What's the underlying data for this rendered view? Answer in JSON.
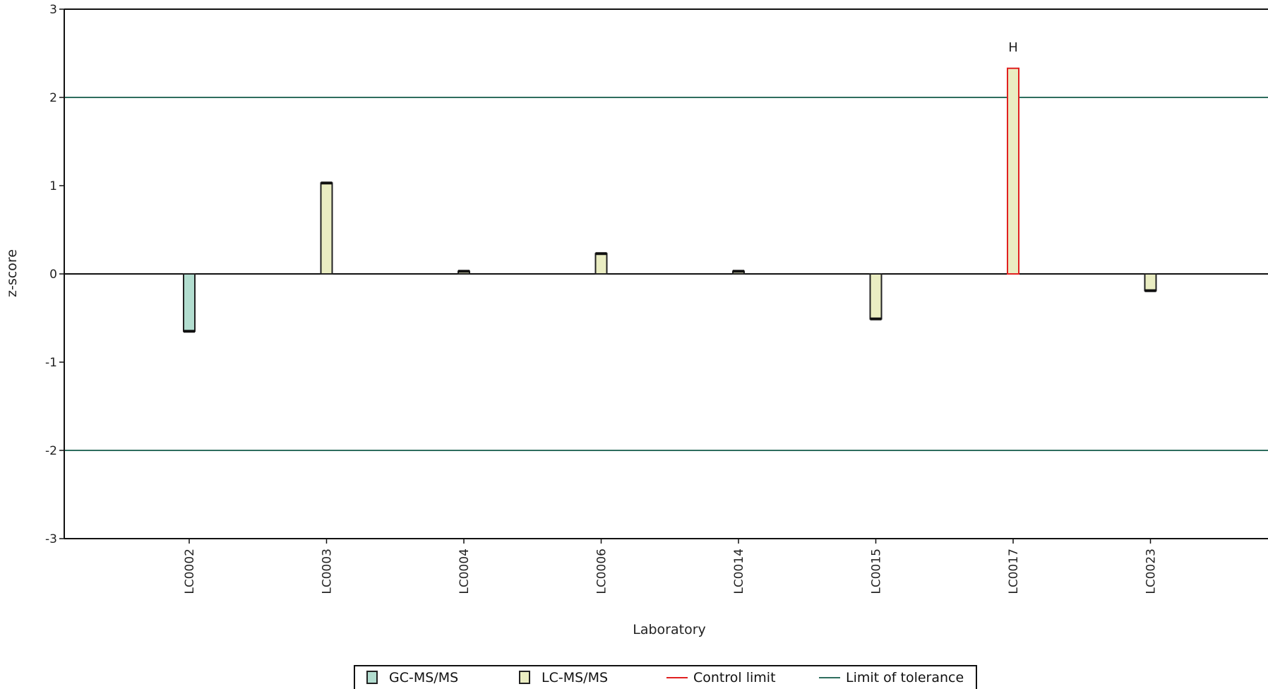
{
  "chart_data": {
    "type": "bar",
    "xlabel": "Laboratory",
    "ylabel": "z-score",
    "ylim": [
      -3,
      3
    ],
    "yticks": [
      3,
      2,
      1,
      0,
      -1,
      -2,
      -3
    ],
    "grid": false,
    "categories": [
      "LC0002",
      "LC0003",
      "LC0004",
      "LC0006",
      "LC0014",
      "LC0015",
      "LC0017",
      "LC0023"
    ],
    "values": [
      -0.65,
      1.03,
      0.03,
      0.23,
      0.03,
      -0.51,
      2.33,
      -0.19
    ],
    "methods": [
      "GC-MS/MS",
      "LC-MS/MS",
      "LC-MS/MS",
      "LC-MS/MS",
      "LC-MS/MS",
      "LC-MS/MS",
      "LC-MS/MS",
      "LC-MS/MS"
    ],
    "flags": [
      "",
      "",
      "",
      "",
      "",
      "",
      "H",
      ""
    ],
    "limit_of_tolerance": [
      2,
      -2
    ],
    "legend": {
      "placement": "bottom",
      "entries": [
        {
          "label": "GC-MS/MS",
          "kind": "box",
          "fill": "#b2ddcf"
        },
        {
          "label": "LC-MS/MS",
          "kind": "box",
          "fill": "#eaedc2"
        },
        {
          "label": "Control limit",
          "kind": "line",
          "color": "#e02020"
        },
        {
          "label": "Limit of tolerance",
          "kind": "line",
          "color": "#2e6e5e"
        }
      ]
    },
    "colors": {
      "gc_fill": "#b2ddcf",
      "lc_fill": "#eaedc2",
      "bar_stroke": "#222222",
      "control_limit": "#e02020",
      "tolerance": "#2e6e5e"
    }
  }
}
